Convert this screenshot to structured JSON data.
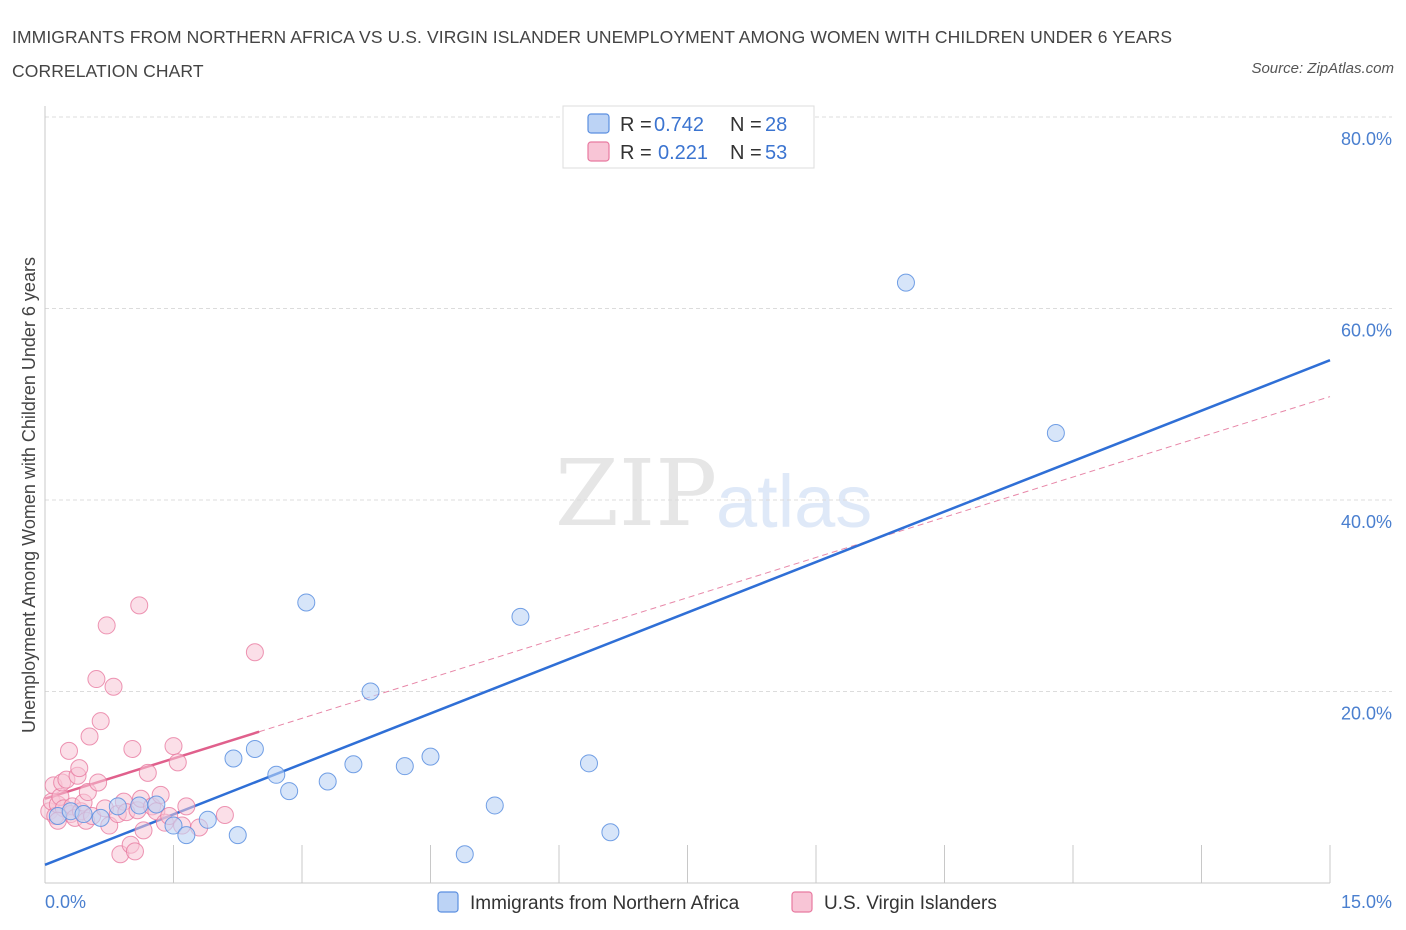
{
  "title": "IMMIGRANTS FROM NORTHERN AFRICA VS U.S. VIRGIN ISLANDER UNEMPLOYMENT AMONG WOMEN WITH CHILDREN UNDER 6 YEARS CORRELATION CHART",
  "source": "Source: ZipAtlas.com",
  "watermark": {
    "zip": "ZIP",
    "atlas": "atlas"
  },
  "colors": {
    "blue": "#5b8fe0",
    "blue_fill": "#bcd3f5",
    "blue_line": "#2f6fd6",
    "pink": "#e87aa0",
    "pink_fill": "#f8c5d6",
    "pink_line": "#e0608c",
    "grid": "#dcdcdc",
    "tick": "#4a7fcf"
  },
  "legend": {
    "r_label": "R =",
    "n_label": "N =",
    "items": [
      {
        "r": "0.742",
        "n": "28"
      },
      {
        "r": "0.221",
        "n": "53"
      }
    ]
  },
  "chart_data": {
    "type": "scatter",
    "title": "IMMIGRANTS FROM NORTHERN AFRICA VS U.S. VIRGIN ISLANDER UNEMPLOYMENT AMONG WOMEN WITH CHILDREN UNDER 6 YEARS CORRELATION CHART",
    "xlabel": "",
    "ylabel": "Unemployment Among Women with Children Under 6 years",
    "xlim": [
      0,
      15
    ],
    "ylim": [
      0,
      80
    ],
    "x_tick_labels": [
      "0.0%",
      "15.0%"
    ],
    "y_ticks": [
      20,
      40,
      60,
      80
    ],
    "y_tick_labels": [
      "20.0%",
      "40.0%",
      "60.0%",
      "80.0%"
    ],
    "grid": true,
    "legend_position": "bottom",
    "series": [
      {
        "name": "Immigrants from Northern Africa",
        "color": "blue",
        "trendline": {
          "x": [
            0,
            15
          ],
          "y": [
            1.9,
            54.6
          ],
          "style": "solid"
        },
        "points": [
          {
            "x": 0.15,
            "y": 7.0
          },
          {
            "x": 0.3,
            "y": 7.5
          },
          {
            "x": 0.45,
            "y": 7.2
          },
          {
            "x": 0.65,
            "y": 6.8
          },
          {
            "x": 0.85,
            "y": 8.0
          },
          {
            "x": 1.1,
            "y": 8.1
          },
          {
            "x": 1.3,
            "y": 8.2
          },
          {
            "x": 1.5,
            "y": 6.0
          },
          {
            "x": 1.65,
            "y": 5.0
          },
          {
            "x": 1.9,
            "y": 6.6
          },
          {
            "x": 2.2,
            "y": 13.0
          },
          {
            "x": 2.25,
            "y": 5.0
          },
          {
            "x": 2.45,
            "y": 14.0
          },
          {
            "x": 2.7,
            "y": 11.3
          },
          {
            "x": 2.85,
            "y": 9.6
          },
          {
            "x": 3.05,
            "y": 29.3
          },
          {
            "x": 3.3,
            "y": 10.6
          },
          {
            "x": 3.8,
            "y": 20.0
          },
          {
            "x": 3.6,
            "y": 12.4
          },
          {
            "x": 4.2,
            "y": 12.2
          },
          {
            "x": 4.5,
            "y": 13.2
          },
          {
            "x": 4.9,
            "y": 3.0
          },
          {
            "x": 5.25,
            "y": 8.1
          },
          {
            "x": 5.55,
            "y": 27.8
          },
          {
            "x": 6.35,
            "y": 12.5
          },
          {
            "x": 6.6,
            "y": 5.3
          },
          {
            "x": 10.05,
            "y": 62.7
          },
          {
            "x": 11.8,
            "y": 47.0
          }
        ]
      },
      {
        "name": "U.S. Virgin Islanders",
        "color": "pink",
        "trendline": {
          "x": [
            0,
            2.5
          ],
          "y": [
            8.8,
            15.8
          ],
          "style": "solid",
          "extended_x": [
            2.5,
            15
          ],
          "extended_y": [
            15.8,
            50.8
          ],
          "extended_style": "dashed"
        },
        "points": [
          {
            "x": 0.05,
            "y": 7.5
          },
          {
            "x": 0.08,
            "y": 8.5
          },
          {
            "x": 0.1,
            "y": 10.2
          },
          {
            "x": 0.12,
            "y": 7.0
          },
          {
            "x": 0.15,
            "y": 8.2
          },
          {
            "x": 0.18,
            "y": 9.0
          },
          {
            "x": 0.2,
            "y": 10.5
          },
          {
            "x": 0.22,
            "y": 7.8
          },
          {
            "x": 0.25,
            "y": 10.8
          },
          {
            "x": 0.28,
            "y": 13.8
          },
          {
            "x": 0.3,
            "y": 7.2
          },
          {
            "x": 0.32,
            "y": 8.0
          },
          {
            "x": 0.35,
            "y": 6.8
          },
          {
            "x": 0.38,
            "y": 11.2
          },
          {
            "x": 0.4,
            "y": 12.0
          },
          {
            "x": 0.42,
            "y": 7.5
          },
          {
            "x": 0.45,
            "y": 8.4
          },
          {
            "x": 0.48,
            "y": 6.5
          },
          {
            "x": 0.5,
            "y": 9.5
          },
          {
            "x": 0.52,
            "y": 15.3
          },
          {
            "x": 0.55,
            "y": 7.0
          },
          {
            "x": 0.6,
            "y": 21.3
          },
          {
            "x": 0.62,
            "y": 10.5
          },
          {
            "x": 0.65,
            "y": 16.9
          },
          {
            "x": 0.7,
            "y": 7.8
          },
          {
            "x": 0.72,
            "y": 26.9
          },
          {
            "x": 0.75,
            "y": 6.0
          },
          {
            "x": 0.8,
            "y": 20.5
          },
          {
            "x": 0.85,
            "y": 7.2
          },
          {
            "x": 0.88,
            "y": 3.0
          },
          {
            "x": 0.92,
            "y": 8.5
          },
          {
            "x": 0.95,
            "y": 7.4
          },
          {
            "x": 1.0,
            "y": 4.0
          },
          {
            "x": 1.02,
            "y": 14.0
          },
          {
            "x": 1.05,
            "y": 3.3
          },
          {
            "x": 1.08,
            "y": 7.6
          },
          {
            "x": 1.1,
            "y": 29.0
          },
          {
            "x": 1.12,
            "y": 8.8
          },
          {
            "x": 1.15,
            "y": 5.5
          },
          {
            "x": 1.2,
            "y": 11.5
          },
          {
            "x": 1.25,
            "y": 8.0
          },
          {
            "x": 1.3,
            "y": 7.5
          },
          {
            "x": 1.35,
            "y": 9.2
          },
          {
            "x": 1.4,
            "y": 6.3
          },
          {
            "x": 1.45,
            "y": 7.0
          },
          {
            "x": 1.5,
            "y": 14.3
          },
          {
            "x": 1.55,
            "y": 12.6
          },
          {
            "x": 1.6,
            "y": 6.0
          },
          {
            "x": 1.65,
            "y": 8.0
          },
          {
            "x": 1.8,
            "y": 5.8
          },
          {
            "x": 2.1,
            "y": 7.1
          },
          {
            "x": 2.45,
            "y": 24.1
          },
          {
            "x": 0.15,
            "y": 6.5
          }
        ]
      }
    ]
  },
  "bottom_legend": [
    "Immigrants from Northern Africa",
    "U.S. Virgin Islanders"
  ]
}
